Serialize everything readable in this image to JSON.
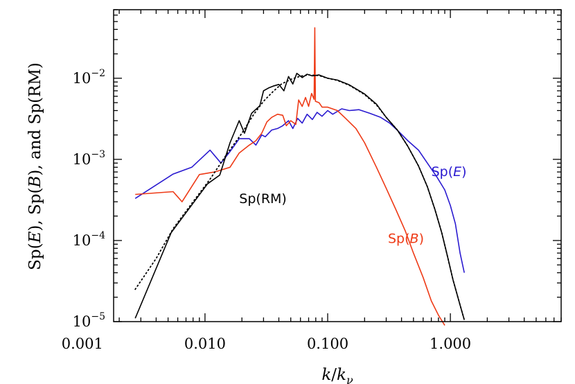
{
  "chart_data": {
    "type": "line",
    "x_scale": "log",
    "y_scale": "log",
    "xlim": [
      0.0018,
      8.0
    ],
    "ylim": [
      1e-05,
      0.07
    ],
    "x_ticks": [
      {
        "value": 0.001,
        "label": "0.001"
      },
      {
        "value": 0.01,
        "label": "0.010"
      },
      {
        "value": 0.1,
        "label": "0.100"
      },
      {
        "value": 1.0,
        "label": "1.000"
      }
    ],
    "y_ticks": [
      {
        "value": 1e-05,
        "base": "10",
        "exp": "−5"
      },
      {
        "value": 0.0001,
        "base": "10",
        "exp": "−4"
      },
      {
        "value": 0.001,
        "base": "10",
        "exp": "−3"
      },
      {
        "value": 0.01,
        "base": "10",
        "exp": "−2"
      }
    ],
    "xlabel": {
      "k": "k",
      "slash": "/",
      "k2": "k",
      "sub": "ν"
    },
    "ylabel": {
      "sp1": "Sp(",
      "e": "E",
      "close1": "), ",
      "sp2": "Sp(",
      "b": "B",
      "close2": "), and Sp(RM)"
    },
    "series": [
      {
        "name_parts": {
          "pre": "Sp(",
          "it": "E",
          "post": ")"
        },
        "color": "#2a1ad0",
        "dash": "solid",
        "points": [
          [
            0.0027,
            0.00033
          ],
          [
            0.0055,
            0.00066
          ],
          [
            0.0078,
            0.0008
          ],
          [
            0.011,
            0.0013
          ],
          [
            0.0135,
            0.0009
          ],
          [
            0.016,
            0.00125
          ],
          [
            0.019,
            0.0018
          ],
          [
            0.023,
            0.0018
          ],
          [
            0.026,
            0.0015
          ],
          [
            0.029,
            0.002
          ],
          [
            0.031,
            0.0019
          ],
          [
            0.035,
            0.0023
          ],
          [
            0.039,
            0.0024
          ],
          [
            0.043,
            0.0026
          ],
          [
            0.048,
            0.003
          ],
          [
            0.052,
            0.0024
          ],
          [
            0.057,
            0.0032
          ],
          [
            0.062,
            0.0028
          ],
          [
            0.068,
            0.0036
          ],
          [
            0.075,
            0.0031
          ],
          [
            0.082,
            0.0038
          ],
          [
            0.09,
            0.0034
          ],
          [
            0.1,
            0.004
          ],
          [
            0.11,
            0.0036
          ],
          [
            0.13,
            0.0042
          ],
          [
            0.15,
            0.004
          ],
          [
            0.18,
            0.0041
          ],
          [
            0.22,
            0.0037
          ],
          [
            0.27,
            0.0033
          ],
          [
            0.32,
            0.0028
          ],
          [
            0.38,
            0.0022
          ],
          [
            0.45,
            0.0017
          ],
          [
            0.55,
            0.0013
          ],
          [
            0.65,
            0.0009
          ],
          [
            0.78,
            0.0006
          ],
          [
            0.9,
            0.00042
          ],
          [
            1.0,
            0.00027
          ],
          [
            1.1,
            0.00016
          ],
          [
            1.2,
            7e-05
          ],
          [
            1.3,
            4e-05
          ]
        ]
      },
      {
        "name_parts": {
          "pre": "Sp(",
          "it": "B",
          "post": ")"
        },
        "color": "#ee3a16",
        "dash": "solid",
        "points": [
          [
            0.0027,
            0.00037
          ],
          [
            0.0055,
            0.0004
          ],
          [
            0.0065,
            0.0003
          ],
          [
            0.009,
            0.00065
          ],
          [
            0.012,
            0.0007
          ],
          [
            0.016,
            0.0008
          ],
          [
            0.019,
            0.0012
          ],
          [
            0.023,
            0.0015
          ],
          [
            0.026,
            0.0017
          ],
          [
            0.029,
            0.0021
          ],
          [
            0.032,
            0.0029
          ],
          [
            0.035,
            0.0033
          ],
          [
            0.039,
            0.0036
          ],
          [
            0.043,
            0.0035
          ],
          [
            0.046,
            0.0026
          ],
          [
            0.05,
            0.003
          ],
          [
            0.055,
            0.0027
          ],
          [
            0.058,
            0.0054
          ],
          [
            0.062,
            0.0045
          ],
          [
            0.066,
            0.0058
          ],
          [
            0.07,
            0.0045
          ],
          [
            0.074,
            0.0065
          ],
          [
            0.0775,
            0.0055
          ],
          [
            0.0785,
            0.042
          ],
          [
            0.0795,
            0.0052
          ],
          [
            0.085,
            0.005
          ],
          [
            0.09,
            0.0044
          ],
          [
            0.1,
            0.0044
          ],
          [
            0.12,
            0.004
          ],
          [
            0.14,
            0.0032
          ],
          [
            0.17,
            0.0024
          ],
          [
            0.2,
            0.0016
          ],
          [
            0.25,
            0.0008
          ],
          [
            0.3,
            0.00044
          ],
          [
            0.36,
            0.00024
          ],
          [
            0.43,
            0.00013
          ],
          [
            0.5,
            7e-05
          ],
          [
            0.6,
            3.5e-05
          ],
          [
            0.7,
            1.8e-05
          ],
          [
            0.8,
            1.2e-05
          ],
          [
            0.9,
            9e-06
          ]
        ]
      },
      {
        "name_parts": {
          "pre": "Sp(RM)",
          "it": "",
          "post": ""
        },
        "color": "#000000",
        "dash": "solid",
        "points": [
          [
            0.0027,
            1.1e-05
          ],
          [
            0.0053,
            0.000125
          ],
          [
            0.0105,
            0.0005
          ],
          [
            0.0132,
            0.00064
          ],
          [
            0.016,
            0.0016
          ],
          [
            0.019,
            0.003
          ],
          [
            0.021,
            0.0021
          ],
          [
            0.024,
            0.0037
          ],
          [
            0.028,
            0.0046
          ],
          [
            0.03,
            0.007
          ],
          [
            0.033,
            0.0076
          ],
          [
            0.036,
            0.008
          ],
          [
            0.04,
            0.0084
          ],
          [
            0.044,
            0.007
          ],
          [
            0.048,
            0.0105
          ],
          [
            0.052,
            0.0085
          ],
          [
            0.056,
            0.0115
          ],
          [
            0.062,
            0.0102
          ],
          [
            0.068,
            0.0112
          ],
          [
            0.075,
            0.0107
          ],
          [
            0.085,
            0.011
          ],
          [
            0.1,
            0.01
          ],
          [
            0.12,
            0.0095
          ],
          [
            0.15,
            0.0083
          ],
          [
            0.2,
            0.0064
          ],
          [
            0.25,
            0.0048
          ],
          [
            0.3,
            0.0033
          ],
          [
            0.37,
            0.0023
          ],
          [
            0.45,
            0.00145
          ],
          [
            0.55,
            0.00083
          ],
          [
            0.65,
            0.00046
          ],
          [
            0.75,
            0.00024
          ],
          [
            0.85,
            0.000125
          ],
          [
            0.95,
            6.3e-05
          ],
          [
            1.05,
            3.3e-05
          ],
          [
            1.2,
            1.6e-05
          ],
          [
            1.3,
            1.05e-05
          ]
        ]
      },
      {
        "name_parts": {
          "pre": "",
          "it": "",
          "post": ""
        },
        "color": "#000000",
        "dash": "dotted",
        "points": [
          [
            0.0027,
            2.5e-05
          ],
          [
            0.004,
            6e-05
          ],
          [
            0.0055,
            0.00014
          ],
          [
            0.008,
            0.0003
          ],
          [
            0.011,
            0.00057
          ],
          [
            0.015,
            0.00115
          ],
          [
            0.02,
            0.0021
          ],
          [
            0.025,
            0.0036
          ],
          [
            0.03,
            0.0052
          ],
          [
            0.036,
            0.0069
          ],
          [
            0.042,
            0.0085
          ],
          [
            0.05,
            0.0097
          ],
          [
            0.06,
            0.0106
          ],
          [
            0.07,
            0.011
          ],
          [
            0.085,
            0.0108
          ],
          [
            0.1,
            0.01
          ],
          [
            0.12,
            0.0094
          ],
          [
            0.15,
            0.0082
          ],
          [
            0.2,
            0.0063
          ],
          [
            0.25,
            0.0047
          ],
          [
            0.3,
            0.0033
          ],
          [
            0.37,
            0.0023
          ],
          [
            0.45,
            0.00145
          ],
          [
            0.55,
            0.00083
          ],
          [
            0.65,
            0.00046
          ],
          [
            0.75,
            0.00024
          ],
          [
            0.85,
            0.000125
          ],
          [
            0.95,
            6.3e-05
          ],
          [
            1.05,
            3.3e-05
          ],
          [
            1.2,
            1.6e-05
          ],
          [
            1.3,
            1.05e-05
          ]
        ]
      }
    ],
    "annotations": [
      {
        "series_index": 0,
        "x": 0.7,
        "y": 0.00062
      },
      {
        "series_index": 1,
        "x": 0.31,
        "y": 9.3e-05
      },
      {
        "series_index": 2,
        "x": 0.019,
        "y": 0.00029
      }
    ]
  }
}
